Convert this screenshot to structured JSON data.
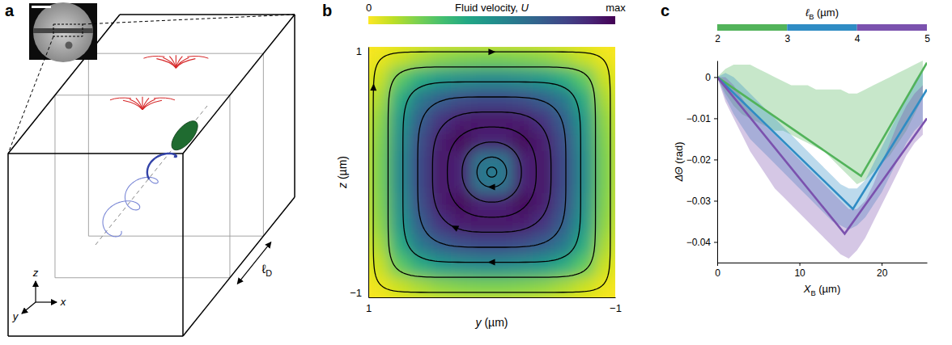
{
  "chart_data": [
    {
      "type": "diagram",
      "panel": "a",
      "axis_labels": [
        "x",
        "y",
        "z"
      ],
      "length_label": [
        "ℓ",
        "D"
      ]
    },
    {
      "type": "heatmap",
      "panel": "b",
      "xlabel": [
        "y",
        " (µm)"
      ],
      "ylabel": [
        "z",
        " (µm)"
      ],
      "xlim": [
        1,
        -1
      ],
      "ylim": [
        -1,
        1
      ],
      "xticks": [
        1,
        {
          "value": -1,
          "label": "−1"
        }
      ],
      "yticks": [
        {
          "value": -1,
          "label": "−1"
        },
        1
      ],
      "cells": [
        [
          0.03,
          0.08,
          0.13,
          0.17,
          0.19,
          0.2,
          0.2,
          0.19,
          0.17,
          0.13,
          0.08,
          0.03
        ],
        [
          0.08,
          0.25,
          0.38,
          0.46,
          0.5,
          0.52,
          0.52,
          0.5,
          0.46,
          0.38,
          0.25,
          0.08
        ],
        [
          0.13,
          0.38,
          0.6,
          0.7,
          0.76,
          0.78,
          0.78,
          0.76,
          0.7,
          0.6,
          0.38,
          0.13
        ],
        [
          0.17,
          0.46,
          0.7,
          0.85,
          0.92,
          0.94,
          0.94,
          0.92,
          0.85,
          0.7,
          0.46,
          0.17
        ],
        [
          0.19,
          0.5,
          0.76,
          0.92,
          0.98,
          0.9,
          0.9,
          0.98,
          0.92,
          0.76,
          0.5,
          0.19
        ],
        [
          0.2,
          0.52,
          0.78,
          0.94,
          0.9,
          0.6,
          0.6,
          0.9,
          0.94,
          0.78,
          0.52,
          0.2
        ],
        [
          0.2,
          0.52,
          0.78,
          0.94,
          0.9,
          0.6,
          0.6,
          0.9,
          0.94,
          0.78,
          0.52,
          0.2
        ],
        [
          0.19,
          0.5,
          0.76,
          0.92,
          0.98,
          0.9,
          0.9,
          0.98,
          0.92,
          0.76,
          0.5,
          0.19
        ],
        [
          0.17,
          0.46,
          0.7,
          0.85,
          0.92,
          0.94,
          0.94,
          0.92,
          0.85,
          0.7,
          0.46,
          0.17
        ],
        [
          0.13,
          0.38,
          0.6,
          0.7,
          0.76,
          0.78,
          0.78,
          0.76,
          0.7,
          0.6,
          0.38,
          0.13
        ],
        [
          0.08,
          0.25,
          0.38,
          0.46,
          0.5,
          0.52,
          0.52,
          0.5,
          0.46,
          0.38,
          0.25,
          0.08
        ],
        [
          0.03,
          0.08,
          0.13,
          0.17,
          0.19,
          0.2,
          0.2,
          0.19,
          0.17,
          0.13,
          0.08,
          0.03
        ]
      ],
      "streamlines": [
        0.96,
        0.84,
        0.72,
        0.6,
        0.48,
        0.36,
        0.24,
        0.12,
        0.04
      ],
      "colorbar": {
        "label": [
          "Fluid velocity, ",
          "U"
        ],
        "lim": [
          0,
          1
        ],
        "ticks": [
          0,
          {
            "value": 1,
            "label": "max"
          }
        ]
      }
    },
    {
      "type": "line",
      "panel": "c",
      "xlabel": [
        "X",
        "B",
        " (µm)"
      ],
      "ylabel": [
        "ΔΘ",
        " (rad)"
      ],
      "xlim": [
        0,
        25.5
      ],
      "ylim": [
        -0.045,
        0.004
      ],
      "xticks": [
        0,
        10,
        20
      ],
      "yticks": [
        0,
        {
          "value": -0.01,
          "label": "−0.01"
        },
        {
          "value": -0.02,
          "label": "−0.02"
        },
        {
          "value": -0.03,
          "label": "−0.03"
        },
        {
          "value": -0.04,
          "label": "−0.04"
        }
      ],
      "colorbar": {
        "label": [
          "ℓ",
          "B",
          " (µm)"
        ],
        "lim": [
          2,
          5
        ],
        "ticks": [
          2,
          3,
          4,
          5
        ],
        "colors": [
          "#52b35a",
          "#2f8cc4",
          "#7b52ae"
        ]
      },
      "band_x": [
        0,
        1,
        2,
        3,
        4,
        5,
        6,
        7,
        8,
        9,
        10,
        11,
        12,
        13,
        14,
        15,
        16,
        17,
        18,
        19,
        20,
        21,
        22,
        23,
        24,
        25
      ],
      "series": [
        {
          "color": "#52b35a",
          "x": [
            0,
            17.5,
            25.5
          ],
          "values": [
            0,
            -0.024,
            0.0035
          ],
          "lower": [
            0,
            -0.004,
            -0.007,
            -0.009,
            -0.01,
            -0.011,
            -0.012,
            -0.013,
            -0.013,
            -0.014,
            -0.015,
            -0.016,
            -0.017,
            -0.018,
            -0.02,
            -0.022,
            -0.024,
            -0.026,
            -0.025,
            -0.023,
            -0.021,
            -0.019,
            -0.016,
            -0.013,
            -0.009,
            -0.005
          ],
          "upper": [
            0,
            0.002,
            0.003,
            0.003,
            0.003,
            0.002,
            0.001,
            0.0,
            -0.001,
            -0.002,
            -0.002,
            -0.002,
            -0.003,
            -0.003,
            -0.003,
            -0.003,
            -0.004,
            -0.004,
            -0.003,
            -0.002,
            -0.001,
            0.0,
            0.001,
            0.002,
            0.003,
            0.004
          ]
        },
        {
          "color": "#2f8cc4",
          "x": [
            0,
            16.5,
            25.5
          ],
          "values": [
            0,
            -0.032,
            -0.003
          ],
          "lower": [
            0,
            -0.005,
            -0.009,
            -0.012,
            -0.015,
            -0.017,
            -0.019,
            -0.021,
            -0.023,
            -0.025,
            -0.027,
            -0.029,
            -0.031,
            -0.033,
            -0.035,
            -0.036,
            -0.037,
            -0.036,
            -0.034,
            -0.031,
            -0.028,
            -0.024,
            -0.02,
            -0.016,
            -0.013,
            -0.011
          ],
          "upper": [
            0,
            0.001,
            0.0,
            -0.002,
            -0.004,
            -0.006,
            -0.008,
            -0.01,
            -0.012,
            -0.014,
            -0.016,
            -0.018,
            -0.02,
            -0.022,
            -0.024,
            -0.026,
            -0.027,
            -0.027,
            -0.025,
            -0.021,
            -0.017,
            -0.013,
            -0.009,
            -0.005,
            -0.001,
            0.002
          ]
        },
        {
          "color": "#7b52ae",
          "x": [
            0,
            15.5,
            25.5
          ],
          "values": [
            0,
            -0.038,
            -0.01
          ],
          "lower": [
            0,
            -0.006,
            -0.01,
            -0.014,
            -0.018,
            -0.021,
            -0.024,
            -0.027,
            -0.029,
            -0.031,
            -0.033,
            -0.035,
            -0.037,
            -0.039,
            -0.041,
            -0.043,
            -0.044,
            -0.042,
            -0.039,
            -0.035,
            -0.031,
            -0.027,
            -0.023,
            -0.019,
            -0.016,
            -0.014
          ],
          "upper": [
            0,
            0.0,
            -0.002,
            -0.005,
            -0.008,
            -0.01,
            -0.012,
            -0.014,
            -0.016,
            -0.018,
            -0.02,
            -0.022,
            -0.024,
            -0.026,
            -0.028,
            -0.03,
            -0.032,
            -0.032,
            -0.03,
            -0.026,
            -0.021,
            -0.016,
            -0.011,
            -0.007,
            -0.004,
            -0.002
          ]
        }
      ]
    }
  ]
}
